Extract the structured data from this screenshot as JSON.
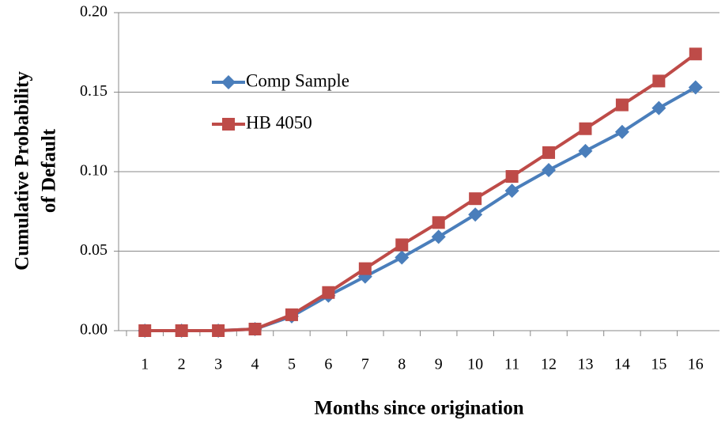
{
  "chart_data": {
    "type": "line",
    "ylabel": [
      "Cumulative Probability",
      "of Default"
    ],
    "xlabel": "Months since origination",
    "categories": [
      "1",
      "2",
      "3",
      "4",
      "5",
      "6",
      "7",
      "8",
      "9",
      "10",
      "11",
      "12",
      "13",
      "14",
      "15",
      "16"
    ],
    "series": [
      {
        "name": "Comp Sample",
        "color": "#4a7ebb",
        "marker": "diamond",
        "values": [
          0,
          0,
          0,
          0.001,
          0.009,
          0.022,
          0.034,
          0.046,
          0.059,
          0.073,
          0.088,
          0.101,
          0.113,
          0.125,
          0.14,
          0.153
        ]
      },
      {
        "name": "HB 4050",
        "color": "#be4b48",
        "marker": "square",
        "values": [
          0,
          0,
          0,
          0.001,
          0.01,
          0.024,
          0.039,
          0.054,
          0.068,
          0.083,
          0.097,
          0.112,
          0.127,
          0.142,
          0.157,
          0.174
        ]
      }
    ],
    "ylim": [
      0,
      0.2
    ],
    "yticks": [
      {
        "value": 0,
        "label": "0.00"
      },
      {
        "value": 0.05,
        "label": "0.05"
      },
      {
        "value": 0.1,
        "label": "0.10"
      },
      {
        "value": 0.15,
        "label": "0.15"
      },
      {
        "value": 0.2,
        "label": "0.20"
      }
    ],
    "grid": true
  }
}
